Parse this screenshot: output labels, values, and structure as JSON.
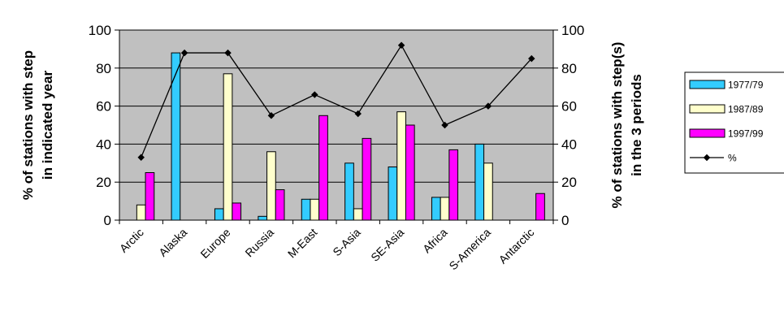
{
  "chart_data": {
    "type": "bar",
    "categories": [
      "Arctic",
      "Alaska",
      "Europe",
      "Russia",
      "M-East",
      "S-Asia",
      "SE-Asia",
      "Africa",
      "S-America",
      "Antarctic"
    ],
    "series": [
      {
        "name": "1977/79",
        "color": "#33ccff",
        "values": [
          0,
          88,
          6,
          2,
          11,
          30,
          28,
          12,
          40,
          0
        ]
      },
      {
        "name": "1987/89",
        "color": "#ffffcc",
        "values": [
          8,
          0,
          77,
          36,
          11,
          6,
          57,
          12,
          30,
          0
        ]
      },
      {
        "name": "1997/99",
        "color": "#ff00ff",
        "values": [
          25,
          0,
          9,
          16,
          55,
          43,
          50,
          37,
          0,
          14
        ]
      }
    ],
    "line_series": {
      "name": "%",
      "axis": "right",
      "values": [
        33,
        88,
        88,
        55,
        66,
        56,
        92,
        50,
        60,
        85
      ]
    },
    "ylabel": "% of stations with step in indicated year",
    "ylabel_lines": [
      "% of stations with step",
      "in indicated year"
    ],
    "y2label": "% of stations with step(s) in the 3 periods",
    "y2label_lines": [
      "% of stations with step(s)",
      "in the 3 periods"
    ],
    "ylim": [
      0,
      100
    ],
    "y2lim": [
      0,
      100
    ],
    "yticks": [
      0,
      20,
      40,
      60,
      80,
      100
    ],
    "grid": true,
    "plot_background": "#c0c0c0",
    "legend": "right"
  }
}
